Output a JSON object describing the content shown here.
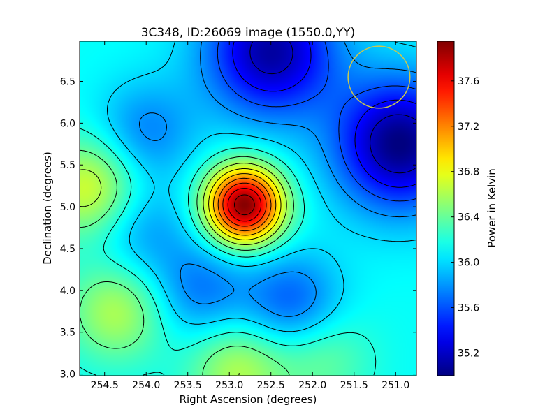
{
  "chart_data": {
    "type": "heatmap",
    "title": "3C348, ID:26069 image (1550.0,YY)",
    "xlabel": "Right Ascension (degrees)",
    "ylabel": "Declination (degrees)",
    "xlim": [
      254.8,
      250.75
    ],
    "ylim": [
      2.98,
      6.98
    ],
    "x_inverted": true,
    "x_ticks": [
      "254.5",
      "254.0",
      "253.5",
      "253.0",
      "252.5",
      "252.0",
      "251.5",
      "251.0"
    ],
    "x_tick_values": [
      254.5,
      254.0,
      253.5,
      253.0,
      252.5,
      252.0,
      251.5,
      251.0
    ],
    "y_ticks": [
      "3.0",
      "3.5",
      "4.0",
      "4.5",
      "5.0",
      "5.5",
      "6.0",
      "6.5"
    ],
    "y_tick_values": [
      3.0,
      3.5,
      4.0,
      4.5,
      5.0,
      5.5,
      6.0,
      6.5
    ],
    "colormap": "jet",
    "grid": false,
    "contours": true,
    "colorbar": {
      "label": "Power in Kelvin",
      "vmin": 35.0,
      "vmax": 37.95,
      "ticks": [
        "35.2",
        "35.6",
        "36.0",
        "36.4",
        "36.8",
        "37.2",
        "37.6"
      ],
      "tick_values": [
        35.2,
        35.6,
        36.0,
        36.4,
        36.8,
        37.2,
        37.6
      ]
    },
    "baseline_kelvin": 36.12,
    "features": [
      {
        "ra": 252.82,
        "dec": 5.02,
        "peak_kelvin": 37.95,
        "kind": "maximum"
      },
      {
        "ra": 254.68,
        "dec": 5.22,
        "peak_kelvin": 36.75,
        "kind": "local maximum"
      },
      {
        "ra": 254.35,
        "dec": 3.75,
        "peak_kelvin": 36.62,
        "kind": "local maximum"
      },
      {
        "ra": 252.9,
        "dec": 3.05,
        "peak_kelvin": 36.62,
        "kind": "local maximum"
      },
      {
        "ra": 251.9,
        "dec": 3.2,
        "peak_kelvin": 36.42,
        "kind": "local maximum"
      },
      {
        "ra": 250.95,
        "dec": 5.75,
        "peak_kelvin": 35.0,
        "kind": "minimum"
      },
      {
        "ra": 252.5,
        "dec": 6.85,
        "peak_kelvin": 35.1,
        "kind": "minimum"
      },
      {
        "ra": 253.35,
        "dec": 4.0,
        "peak_kelvin": 35.72,
        "kind": "local minimum"
      },
      {
        "ra": 252.25,
        "dec": 3.85,
        "peak_kelvin": 35.62,
        "kind": "local minimum"
      },
      {
        "ra": 254.05,
        "dec": 4.72,
        "peak_kelvin": 35.82,
        "kind": "local minimum"
      },
      {
        "ra": 254.0,
        "dec": 5.9,
        "peak_kelvin": 35.75,
        "kind": "local minimum"
      }
    ],
    "beam_circle": {
      "ra": 251.2,
      "dec": 6.55,
      "radius_deg": 0.37,
      "color": "#c8c850"
    }
  }
}
